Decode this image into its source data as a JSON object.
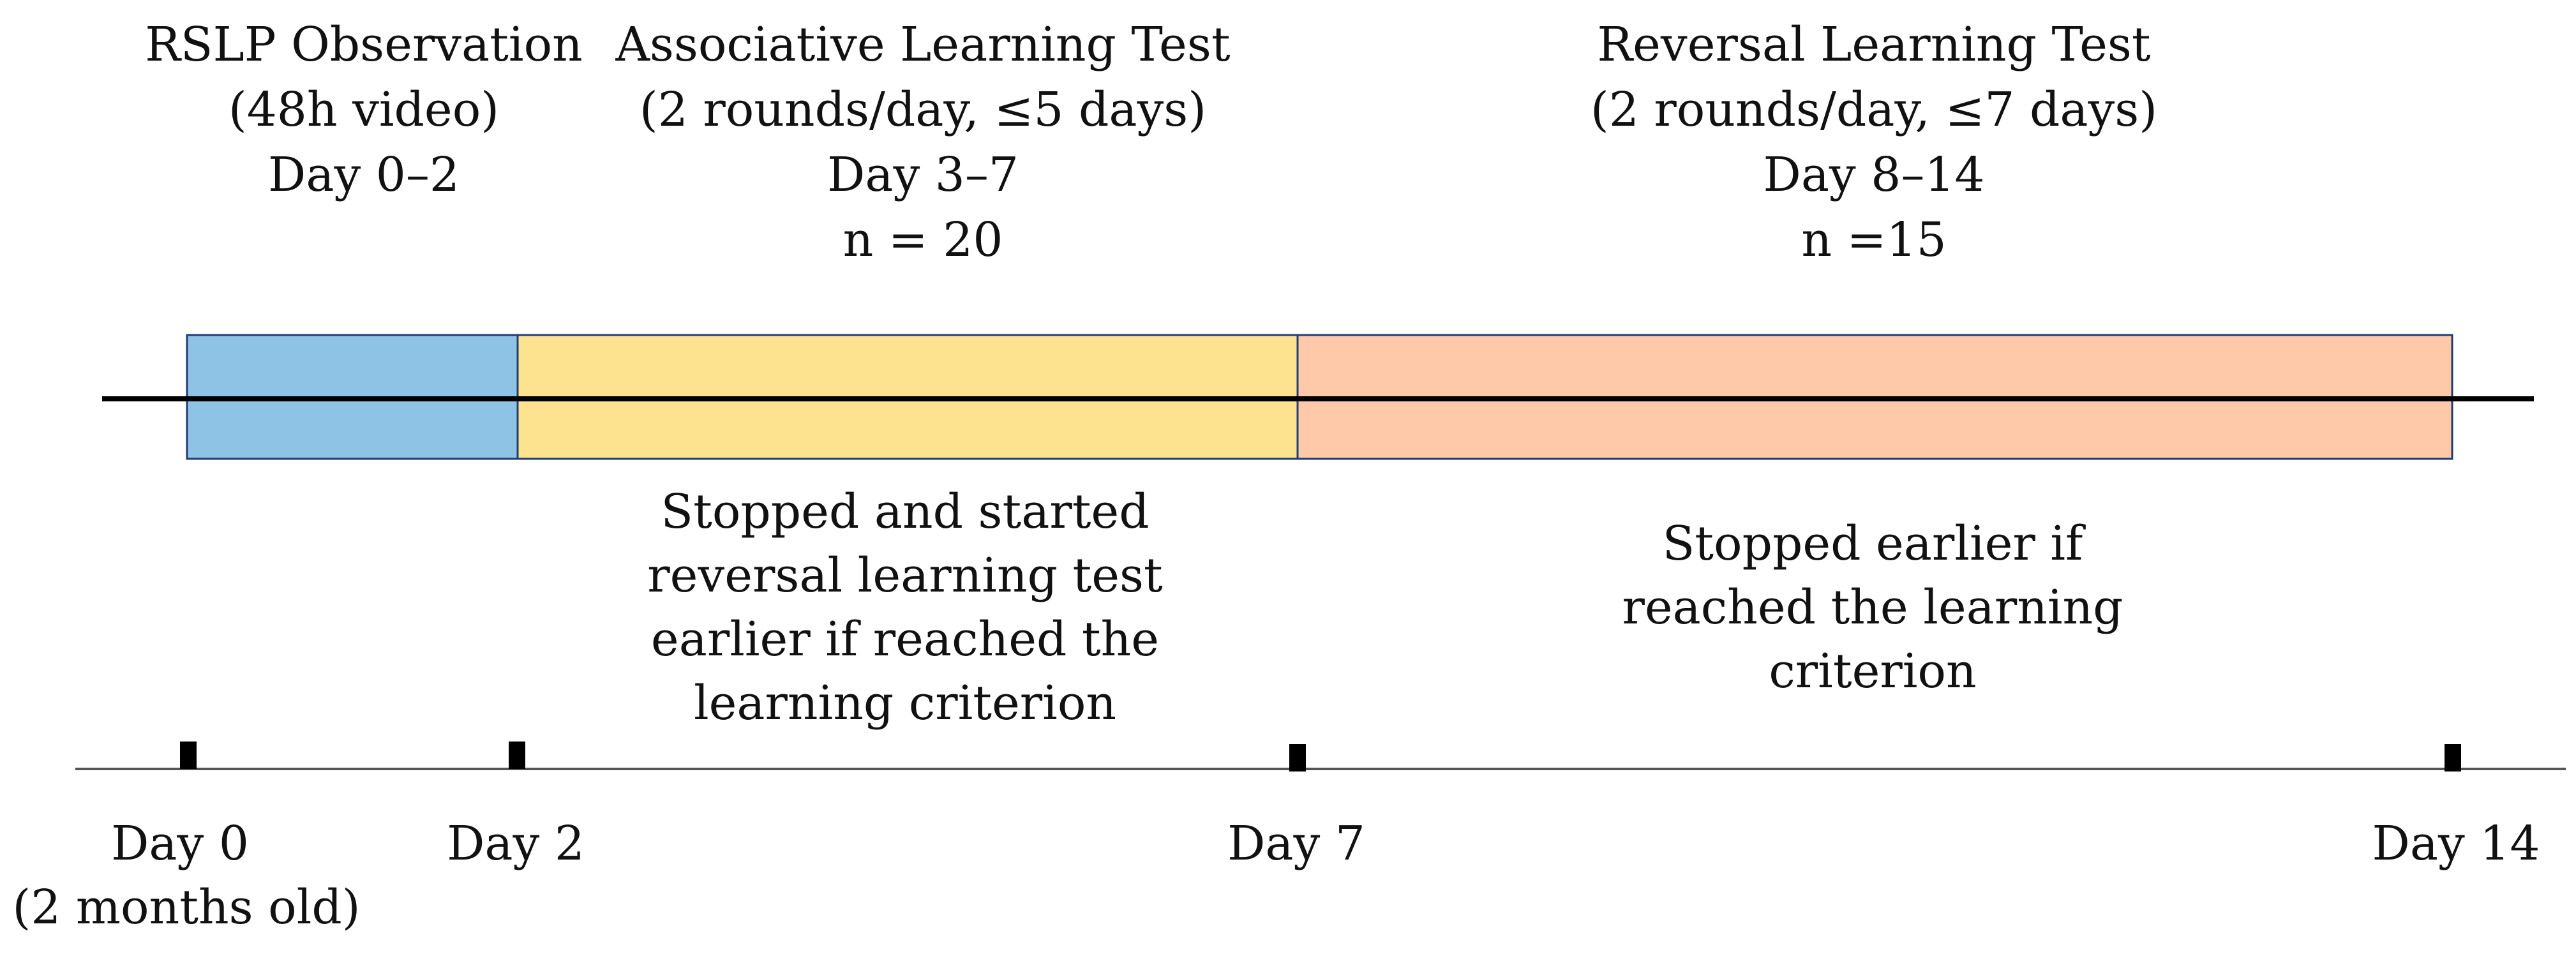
{
  "phases": [
    {
      "title": "RSLP Observation",
      "details": [
        "(48h video)",
        "Day 0–2"
      ],
      "color": "#8EC3E6"
    },
    {
      "title": "Associative Learning Test",
      "details": [
        "(2 rounds/day, ≤5 days)",
        "Day 3–7",
        "n = 20"
      ],
      "color": "#FDE38F",
      "note": [
        "Stopped and started",
        "reversal learning test",
        "earlier if reached the",
        "learning criterion"
      ]
    },
    {
      "title": "Reversal Learning Test",
      "details": [
        "(2 rounds/day, ≤7 days)",
        "Day 8–14",
        "n =15"
      ],
      "color": "#FDC9A8",
      "note": [
        "Stopped earlier if",
        "reached the learning",
        "criterion"
      ]
    }
  ],
  "timeline": {
    "ticks": [
      {
        "label": "Day 0",
        "sublabel": "(2 months old)"
      },
      {
        "label": "Day 2"
      },
      {
        "label": "Day 7"
      },
      {
        "label": "Day 14"
      }
    ]
  },
  "colors": {
    "border": "#1F3D73",
    "axis": "#000000",
    "baseline": "#555555"
  }
}
